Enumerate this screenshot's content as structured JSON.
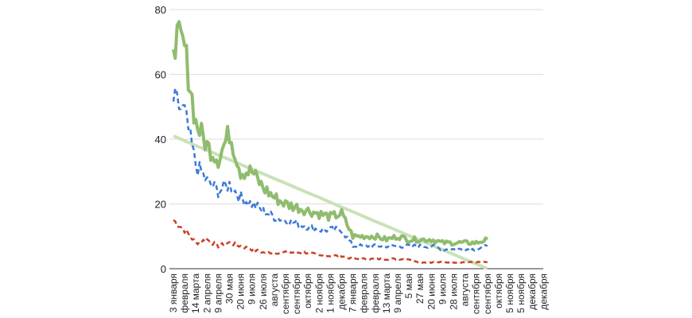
{
  "chart_data": {
    "type": "line",
    "title": "",
    "xlabel": "",
    "ylabel": "",
    "ylim": [
      0,
      80
    ],
    "yticks": [
      0,
      20,
      40,
      60,
      80
    ],
    "grid": true,
    "categories": [
      "3 января",
      "февраля",
      "14 марта",
      "2 апреля",
      "9 апреля",
      "30 мая",
      "20 июня",
      "9 июля",
      "26 июля",
      "августа",
      "сентября",
      "сентября",
      "октября",
      "2 ноября",
      "1 ноября",
      "декабря",
      "7 января",
      "февраля",
      "февраля",
      "13 марта",
      "9 апреля",
      "5 мая",
      "27 мая",
      "20 июня",
      "9 июля",
      "28 июля",
      "августа",
      "сентября",
      "сентября",
      "октября",
      "5 ноября",
      "5 ноября",
      "декабря",
      "декабря"
    ],
    "series": [
      {
        "name": "green",
        "color": "#8fbc6e",
        "style": "solid",
        "values": [
          72,
          68,
          45,
          38,
          34,
          42,
          30,
          30,
          25,
          22,
          20,
          19,
          18,
          17,
          16,
          17,
          10,
          10,
          10,
          9,
          10,
          9,
          9,
          9,
          8,
          8,
          8,
          8,
          9,
          null,
          null,
          null,
          null,
          null
        ]
      },
      {
        "name": "blue",
        "color": "#3c78d8",
        "style": "dashed",
        "values": [
          52,
          48,
          32,
          27,
          24,
          26,
          22,
          20,
          18,
          16,
          15,
          14,
          13,
          12,
          12,
          12,
          7,
          7,
          7,
          7,
          7,
          7,
          7,
          7,
          6,
          6,
          6,
          6,
          7,
          null,
          null,
          null,
          null,
          null
        ]
      },
      {
        "name": "red",
        "color": "#cc4125",
        "style": "dashed",
        "values": [
          15,
          12,
          8,
          9,
          7,
          8,
          7,
          6,
          5,
          5,
          5,
          5,
          5,
          4,
          4,
          4,
          3,
          3,
          3,
          3,
          3,
          3,
          2,
          2,
          2,
          2,
          2,
          2,
          2,
          null,
          null,
          null,
          null,
          null
        ]
      },
      {
        "name": "trend",
        "color": "#c9e2b8",
        "style": "solid",
        "values": [
          41,
          39.5,
          38,
          36.6,
          35.1,
          33.7,
          32.2,
          30.7,
          29.3,
          27.8,
          26.4,
          24.9,
          23.4,
          22,
          20.5,
          19,
          17.6,
          16.1,
          14.6,
          13.2,
          11.7,
          10.2,
          8.8,
          7.3,
          5.9,
          4.4,
          2.9,
          1.5,
          0,
          null,
          null,
          null,
          null,
          null
        ]
      }
    ]
  }
}
